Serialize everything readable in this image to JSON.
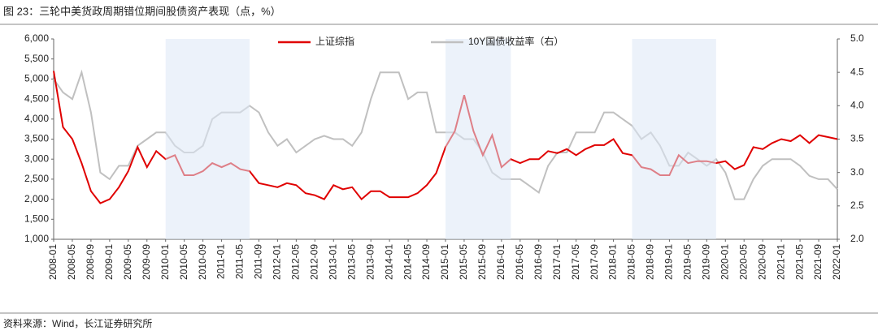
{
  "chart_data": {
    "type": "line",
    "title": "图 23：三轮中美货政周期错位期间股债资产表现（点，%）",
    "source": "资料来源：Wind，长江证券研究所",
    "x": [
      "2008-01",
      "2008-03",
      "2008-05",
      "2008-07",
      "2008-09",
      "2008-11",
      "2009-01",
      "2009-03",
      "2009-05",
      "2009-07",
      "2009-09",
      "2009-11",
      "2010-01",
      "2010-03",
      "2010-05",
      "2010-07",
      "2010-09",
      "2010-11",
      "2011-01",
      "2011-03",
      "2011-05",
      "2011-07",
      "2011-09",
      "2011-11",
      "2012-01",
      "2012-03",
      "2012-05",
      "2012-07",
      "2012-09",
      "2012-11",
      "2013-01",
      "2013-03",
      "2013-05",
      "2013-07",
      "2013-09",
      "2013-11",
      "2014-01",
      "2014-03",
      "2014-05",
      "2014-07",
      "2014-09",
      "2014-11",
      "2015-01",
      "2015-03",
      "2015-05",
      "2015-07",
      "2015-09",
      "2015-11",
      "2016-01",
      "2016-03",
      "2016-05",
      "2016-07",
      "2016-09",
      "2016-11",
      "2017-01",
      "2017-03",
      "2017-05",
      "2017-07",
      "2017-09",
      "2017-11",
      "2018-01",
      "2018-03",
      "2018-05",
      "2018-07",
      "2018-09",
      "2018-11",
      "2019-01",
      "2019-03",
      "2019-05",
      "2019-07",
      "2019-09",
      "2019-11",
      "2020-01",
      "2020-03",
      "2020-05",
      "2020-07",
      "2020-09",
      "2020-11",
      "2021-01",
      "2021-03",
      "2021-05",
      "2021-07",
      "2021-09",
      "2021-11",
      "2022-01"
    ],
    "xticks": [
      "2008-01",
      "2008-05",
      "2008-09",
      "2009-01",
      "2009-05",
      "2009-09",
      "2010-01",
      "2010-05",
      "2010-09",
      "2011-01",
      "2011-05",
      "2011-09",
      "2012-01",
      "2012-05",
      "2012-09",
      "2013-01",
      "2013-05",
      "2013-09",
      "2014-01",
      "2014-05",
      "2014-09",
      "2015-01",
      "2015-05",
      "2015-09",
      "2016-01",
      "2016-05",
      "2016-09",
      "2017-01",
      "2017-05",
      "2017-09",
      "2018-01",
      "2018-05",
      "2018-09",
      "2019-01",
      "2019-05",
      "2019-09",
      "2020-01",
      "2020-05",
      "2020-09",
      "2021-01",
      "2021-05",
      "2021-09",
      "2022-01"
    ],
    "shaded_periods": [
      [
        "2010-01",
        "2011-07"
      ],
      [
        "2015-01",
        "2016-03"
      ],
      [
        "2018-05",
        "2019-11"
      ]
    ],
    "ylim": [
      1000,
      6000
    ],
    "yticks": [
      {
        "value": 1000,
        "label": "1,000"
      },
      {
        "value": 1500,
        "label": "1,500"
      },
      {
        "value": 2000,
        "label": "2,000"
      },
      {
        "value": 2500,
        "label": "2,500"
      },
      {
        "value": 3000,
        "label": "3,000"
      },
      {
        "value": 3500,
        "label": "3,500"
      },
      {
        "value": 4000,
        "label": "4,000"
      },
      {
        "value": 4500,
        "label": "4,500"
      },
      {
        "value": 5000,
        "label": "5,000"
      },
      {
        "value": 5500,
        "label": "5,500"
      },
      {
        "value": 6000,
        "label": "6,000"
      }
    ],
    "y2lim": [
      2.0,
      5.0
    ],
    "y2ticks": [
      {
        "value": 2,
        "label": "2.0"
      },
      2.5,
      {
        "value": 3,
        "label": "3.0"
      },
      3.5,
      {
        "value": 4,
        "label": "4.0"
      },
      4.5,
      {
        "value": 5,
        "label": "5.0"
      }
    ],
    "series": [
      {
        "name": "上证综指",
        "color": "#e00000",
        "values": [
          5200,
          3800,
          3500,
          2900,
          2200,
          1900,
          2000,
          2300,
          2700,
          3300,
          2800,
          3200,
          3000,
          3100,
          2600,
          2600,
          2700,
          2900,
          2800,
          2900,
          2750,
          2700,
          2400,
          2350,
          2300,
          2400,
          2350,
          2150,
          2100,
          2000,
          2350,
          2250,
          2300,
          2000,
          2200,
          2200,
          2050,
          2050,
          2050,
          2150,
          2350,
          2650,
          3300,
          3700,
          4600,
          3700,
          3100,
          3600,
          2800,
          3000,
          2900,
          3000,
          3000,
          3200,
          3150,
          3250,
          3100,
          3250,
          3350,
          3350,
          3500,
          3150,
          3100,
          2800,
          2750,
          2600,
          2600,
          3100,
          2900,
          2950,
          2950,
          2900,
          2950,
          2750,
          2850,
          3300,
          3250,
          3400,
          3500,
          3450,
          3600,
          3400,
          3600,
          3550,
          3500
        ]
      },
      {
        "name": "10Y国债收益率（右）",
        "color": "#c0c0c0",
        "axis": "y2",
        "values": [
          4.4,
          4.2,
          4.1,
          4.5,
          3.9,
          3.0,
          2.9,
          3.1,
          3.1,
          3.4,
          3.5,
          3.6,
          3.6,
          3.4,
          3.3,
          3.3,
          3.4,
          3.8,
          3.9,
          3.9,
          3.9,
          4.0,
          3.9,
          3.6,
          3.4,
          3.5,
          3.3,
          3.4,
          3.5,
          3.55,
          3.5,
          3.5,
          3.4,
          3.6,
          4.1,
          4.5,
          4.5,
          4.5,
          4.1,
          4.2,
          4.2,
          3.6,
          3.6,
          3.6,
          3.5,
          3.5,
          3.3,
          3.0,
          2.9,
          2.9,
          2.9,
          2.8,
          2.7,
          3.1,
          3.3,
          3.3,
          3.6,
          3.6,
          3.6,
          3.9,
          3.9,
          3.8,
          3.7,
          3.5,
          3.6,
          3.4,
          3.1,
          3.1,
          3.3,
          3.2,
          3.1,
          3.2,
          3.0,
          2.6,
          2.6,
          2.9,
          3.1,
          3.2,
          3.2,
          3.2,
          3.1,
          2.95,
          2.9,
          2.9,
          2.75
        ]
      }
    ]
  }
}
